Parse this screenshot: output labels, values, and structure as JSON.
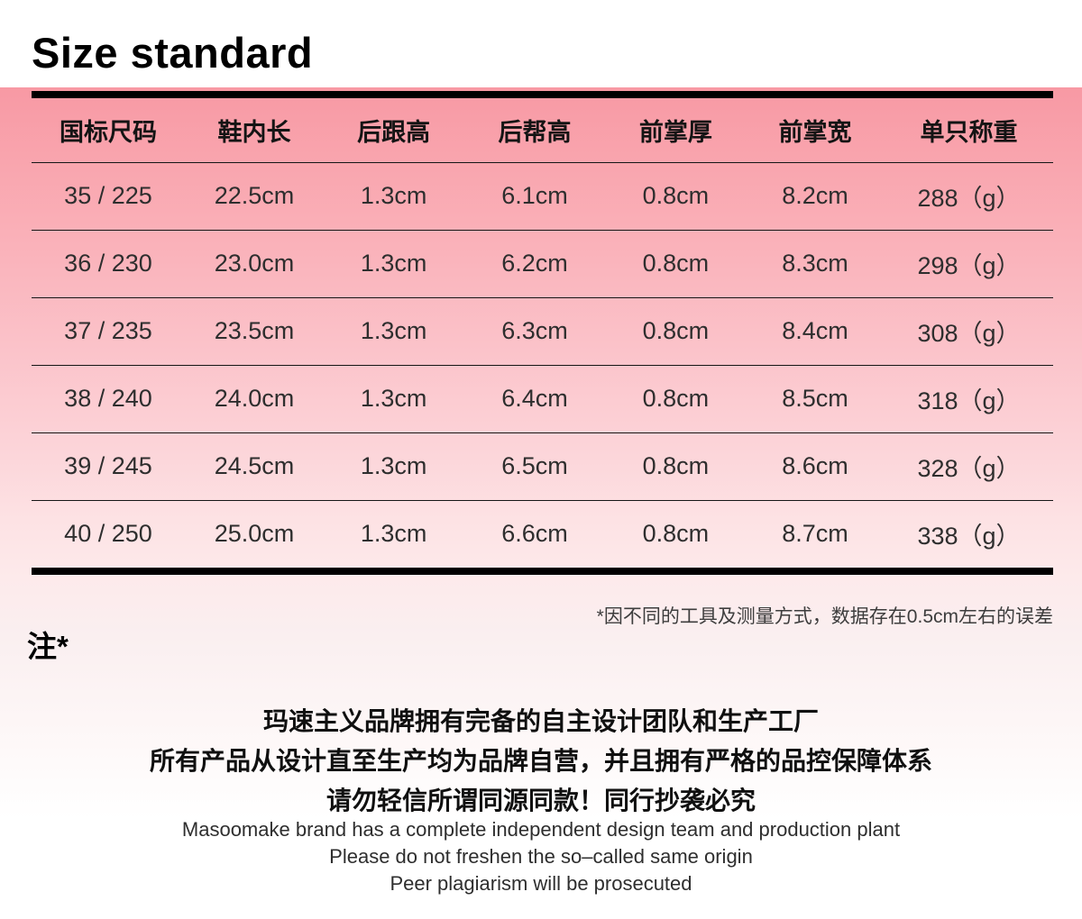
{
  "header": {
    "title": "Size standard"
  },
  "size_table": {
    "columns": [
      "国标尺码",
      "鞋内长",
      "后跟高",
      "后帮高",
      "前掌厚",
      "前掌宽",
      "单只称重"
    ],
    "rows": [
      [
        "35 / 225",
        "22.5cm",
        "1.3cm",
        "6.1cm",
        "0.8cm",
        "8.2cm",
        "288（g）"
      ],
      [
        "36 / 230",
        "23.0cm",
        "1.3cm",
        "6.2cm",
        "0.8cm",
        "8.3cm",
        "298（g）"
      ],
      [
        "37 / 235",
        "23.5cm",
        "1.3cm",
        "6.3cm",
        "0.8cm",
        "8.4cm",
        "308（g）"
      ],
      [
        "38 / 240",
        "24.0cm",
        "1.3cm",
        "6.4cm",
        "0.8cm",
        "8.5cm",
        "318（g）"
      ],
      [
        "39 / 245",
        "24.5cm",
        "1.3cm",
        "6.5cm",
        "0.8cm",
        "8.6cm",
        "328（g）"
      ],
      [
        "40 / 250",
        "25.0cm",
        "1.3cm",
        "6.6cm",
        "0.8cm",
        "8.7cm",
        "338（g）"
      ]
    ]
  },
  "footnote": {
    "disclaimer": "*因不同的工具及测量方式，数据存在0.5cm左右的误差",
    "note_label": "注*"
  },
  "brand_statement": {
    "zh_lines": [
      "玛速主义品牌拥有完备的自主设计团队和生产工厂",
      "所有产品从设计直至生产均为品牌自营，并且拥有严格的品控保障体系",
      "请勿轻信所谓同源同款！同行抄袭必究"
    ],
    "en_lines": [
      "Masoomake brand has a complete independent design team and production plant",
      "Please do not freshen the so–called same origin",
      "Peer plagiarism will be prosecuted"
    ]
  },
  "colors": {
    "table_pink_top": "#f899a4",
    "table_pink_bottom": "#fdeaeb",
    "fade_to": "#ffffff",
    "bar_black": "#000000",
    "text_dark": "#2e2e2e"
  }
}
